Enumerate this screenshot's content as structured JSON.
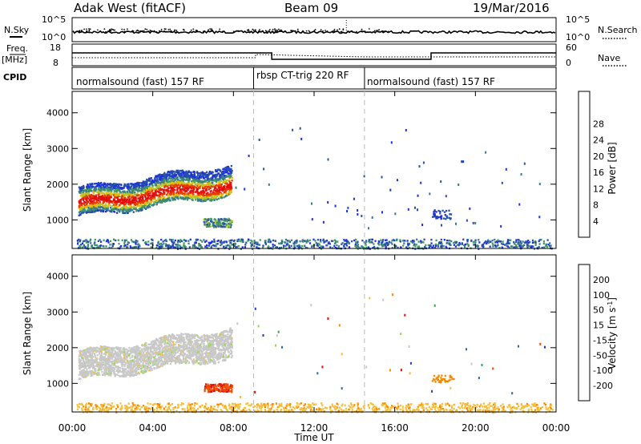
{
  "header": {
    "station": "Adak West (fitACF)",
    "beam": "Beam 09",
    "date": "19/Mar/2016"
  },
  "noise_panel": {
    "left_label": "N.Sky",
    "right_label": "N.Search",
    "left_ticks": [
      "10^5",
      "10^0"
    ],
    "right_ticks": [
      "10^5",
      "10^0"
    ]
  },
  "freq_panel": {
    "left_label": "Freq.",
    "left_unit": "[MHz]",
    "left_ticks": [
      "18",
      "8"
    ],
    "right_label": "Nave",
    "right_ticks": [
      "60",
      "0"
    ]
  },
  "cpid_panel": {
    "label": "CPID",
    "segments": [
      {
        "name": "normalsound (fast) 157 RF",
        "start_hr": 0,
        "end_hr": 9
      },
      {
        "name": "rbsp CT-trig 220 RF",
        "start_hr": 9,
        "end_hr": 14.5
      },
      {
        "name": "normalsound (fast) 157 RF",
        "start_hr": 14.5,
        "end_hr": 24
      }
    ]
  },
  "chart_data": [
    {
      "type": "heatmap",
      "ylabel": "Slant Range [km]",
      "yticks": [
        "1000",
        "2000",
        "3000",
        "4000"
      ],
      "ylim": [
        200,
        4600
      ],
      "colorbar": {
        "label": "Power [dB]",
        "ticks": [
          "4",
          "8",
          "12",
          "16",
          "20",
          "24",
          "28"
        ],
        "colors": [
          "#1c2de6",
          "#2850a6",
          "#3a7a8c",
          "#3f9a5e",
          "#a8c832",
          "#f5b800",
          "#f07800",
          "#e63c00",
          "#e01010"
        ]
      },
      "features": [
        {
          "desc": "main backscatter band",
          "x_hr": [
            0.3,
            7.8
          ],
          "range_km": [
            1000,
            2200
          ],
          "peak_db": 28
        },
        {
          "desc": "secondary patch",
          "x_hr": [
            6.5,
            7.9
          ],
          "range_km": [
            800,
            1050
          ],
          "peak_db": 16
        },
        {
          "desc": "patch",
          "x_hr": [
            17.8,
            18.8
          ],
          "range_km": [
            1050,
            1300
          ],
          "peak_db": 6
        }
      ]
    },
    {
      "type": "heatmap",
      "ylabel": "Slant Range [km]",
      "yticks": [
        "1000",
        "2000",
        "3000",
        "4000"
      ],
      "ylim": [
        200,
        4600
      ],
      "colorbar": {
        "label": "Velocity [m s",
        "label_sup": "-1",
        "label_end": "]",
        "ticks": [
          "200",
          "100",
          "50",
          "15",
          "-15",
          "-50",
          "-100",
          "-200"
        ],
        "colors": [
          "#2536c8",
          "#2f6aa8",
          "#3aa050",
          "#96dc46",
          "#c8c8c8",
          "#f5c040",
          "#f58a00",
          "#f05000",
          "#e01010"
        ]
      },
      "features": [
        {
          "desc": "ground scatter band",
          "x_hr": [
            0.3,
            7.8
          ],
          "range_km": [
            1100,
            2100
          ],
          "velocity": 0
        },
        {
          "desc": "negative velocity patch",
          "x_hr": [
            6.5,
            7.9
          ],
          "range_km": [
            780,
            1000
          ],
          "velocity": -100
        },
        {
          "desc": "near-range ground scatter",
          "x_hr": [
            9,
            24
          ],
          "range_km": [
            200,
            450
          ],
          "velocity": -30
        }
      ]
    }
  ],
  "xaxis": {
    "label": "Time UT",
    "ticks": [
      "00:00",
      "04:00",
      "08:00",
      "12:00",
      "16:00",
      "20:00",
      "00:00"
    ]
  },
  "markers_hr": [
    9,
    14.5
  ]
}
